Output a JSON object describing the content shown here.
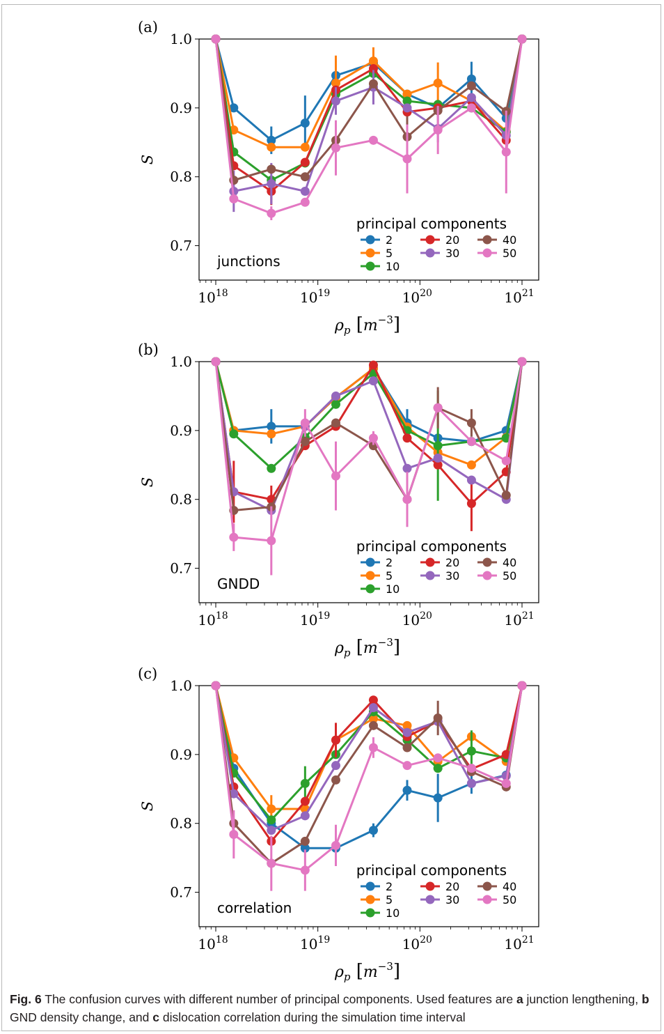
{
  "caption": {
    "label": "Fig. 6",
    "text_1": "The confusion curves with different number of principal components. Used features are",
    "a_letter": "a",
    "text_2": "junction lengthening,",
    "b_letter": "b",
    "text_3": "GND density change, and",
    "c_letter": "c",
    "text_4": "dislocation correlation during the simulation time interval"
  },
  "chart_data": [
    {
      "type": "line",
      "panel": "(a)",
      "annotation": "junctions",
      "xlabel_sym": "ρ",
      "xlabel_sub": "p",
      "xlabel_unit": "m",
      "xlabel_exp": "−3",
      "ylabel": "S",
      "xscale": "log",
      "xlim": [
        1e+18,
        1e+21
      ],
      "ylim": [
        0.65,
        1.0
      ],
      "x_ticks": [
        "18",
        "19",
        "20",
        "21"
      ],
      "x_tick_base": "10",
      "y_ticks": [
        "0.7",
        "0.8",
        "0.9",
        "1.0"
      ],
      "legend_title": "principal components",
      "legend_loc": "lower right",
      "x": [
        1e+18,
        1.5e+18,
        3.5e+18,
        7.5e+18,
        1.5e+19,
        3.5e+19,
        7.5e+19,
        1.5e+20,
        3.2e+20,
        7e+20,
        1e+21
      ],
      "series": [
        {
          "name": "2",
          "color": "#1f77b4",
          "values": [
            1.0,
            0.9,
            0.853,
            0.878,
            0.947,
            0.965,
            0.92,
            0.9,
            0.942,
            0.885,
            1.0
          ],
          "err": [
            0,
            0,
            0.02,
            0.04,
            0,
            0,
            0,
            0,
            0.025,
            0,
            0
          ]
        },
        {
          "name": "5",
          "color": "#ff7f0e",
          "values": [
            1.0,
            0.868,
            0.843,
            0.843,
            0.936,
            0.968,
            0.92,
            0.936,
            0.91,
            0.866,
            1.0
          ],
          "err": [
            0,
            0,
            0,
            0,
            0.04,
            0.02,
            0,
            0.03,
            0,
            0,
            0
          ]
        },
        {
          "name": "10",
          "color": "#2ca02c",
          "values": [
            1.0,
            0.836,
            0.795,
            0.82,
            0.92,
            0.95,
            0.91,
            0.905,
            0.9,
            0.865,
            1.0
          ],
          "err": [
            0,
            0,
            0,
            0,
            0,
            0,
            0,
            0,
            0,
            0,
            0
          ]
        },
        {
          "name": "20",
          "color": "#d62728",
          "values": [
            1.0,
            0.816,
            0.779,
            0.821,
            0.926,
            0.957,
            0.894,
            0.9,
            0.91,
            0.853,
            1.0
          ],
          "err": [
            0,
            0,
            0.02,
            0,
            0,
            0,
            0,
            0,
            0,
            0,
            0
          ]
        },
        {
          "name": "30",
          "color": "#9467bd",
          "values": [
            1.0,
            0.779,
            0.79,
            0.779,
            0.91,
            0.93,
            0.9,
            0.87,
            0.915,
            0.86,
            1.0
          ],
          "err": [
            0,
            0.03,
            0.03,
            0,
            0.02,
            0.025,
            0,
            0.02,
            0,
            0,
            0
          ]
        },
        {
          "name": "40",
          "color": "#8c564b",
          "values": [
            1.0,
            0.795,
            0.811,
            0.8,
            0.853,
            0.935,
            0.858,
            0.896,
            0.932,
            0.895,
            1.0
          ],
          "err": [
            0,
            0,
            0,
            0,
            0,
            0,
            0.03,
            0,
            0,
            0,
            0
          ]
        },
        {
          "name": "50",
          "color": "#e377c2",
          "values": [
            1.0,
            0.768,
            0.747,
            0.763,
            0.842,
            0.853,
            0.826,
            0.868,
            0.9,
            0.836,
            1.0
          ],
          "err": [
            0,
            0,
            0.01,
            0,
            0.04,
            0,
            0.05,
            0.035,
            0,
            0.06,
            0
          ]
        }
      ]
    },
    {
      "type": "line",
      "panel": "(b)",
      "annotation": "GNDD",
      "xlabel_sym": "ρ",
      "xlabel_sub": "p",
      "xlabel_unit": "m",
      "xlabel_exp": "−3",
      "ylabel": "S",
      "xscale": "log",
      "xlim": [
        1e+18,
        1e+21
      ],
      "ylim": [
        0.65,
        1.0
      ],
      "x_ticks": [
        "18",
        "19",
        "20",
        "21"
      ],
      "x_tick_base": "10",
      "y_ticks": [
        "0.7",
        "0.8",
        "0.9",
        "1.0"
      ],
      "legend_title": "principal components",
      "legend_loc": "lower right",
      "x": [
        1e+18,
        1.5e+18,
        3.5e+18,
        7.5e+18,
        1.5e+19,
        3.5e+19,
        7.5e+19,
        1.5e+20,
        3.2e+20,
        7e+20,
        1e+21
      ],
      "series": [
        {
          "name": "2",
          "color": "#1f77b4",
          "values": [
            1.0,
            0.9,
            0.906,
            0.906,
            0.948,
            0.99,
            0.911,
            0.889,
            0.884,
            0.9,
            1.0
          ],
          "err": [
            0,
            0,
            0.025,
            0,
            0,
            0,
            0.02,
            0,
            0,
            0,
            0
          ]
        },
        {
          "name": "5",
          "color": "#ff7f0e",
          "values": [
            1.0,
            0.9,
            0.895,
            0.906,
            0.948,
            0.99,
            0.905,
            0.868,
            0.85,
            0.89,
            1.0
          ],
          "err": [
            0,
            0,
            0,
            0,
            0,
            0,
            0,
            0,
            0,
            0,
            0
          ]
        },
        {
          "name": "10",
          "color": "#2ca02c",
          "values": [
            1.0,
            0.895,
            0.845,
            0.89,
            0.938,
            0.983,
            0.9,
            0.878,
            0.884,
            0.889,
            1.0
          ],
          "err": [
            0,
            0,
            0,
            0,
            0,
            0,
            0,
            0.08,
            0,
            0,
            0
          ]
        },
        {
          "name": "20",
          "color": "#d62728",
          "values": [
            1.0,
            0.811,
            0.8,
            0.878,
            0.906,
            0.995,
            0.889,
            0.85,
            0.794,
            0.84,
            1.0
          ],
          "err": [
            0,
            0.045,
            0.02,
            0,
            0,
            0,
            0,
            0,
            0.04,
            0,
            0
          ]
        },
        {
          "name": "30",
          "color": "#9467bd",
          "values": [
            1.0,
            0.811,
            0.784,
            0.906,
            0.95,
            0.972,
            0.845,
            0.86,
            0.828,
            0.8,
            1.0
          ],
          "err": [
            0,
            0,
            0,
            0,
            0,
            0,
            0,
            0,
            0,
            0,
            0
          ]
        },
        {
          "name": "40",
          "color": "#8c564b",
          "values": [
            1.0,
            0.784,
            0.789,
            0.884,
            0.911,
            0.878,
            0.8,
            0.933,
            0.911,
            0.806,
            1.0
          ],
          "err": [
            0,
            0,
            0,
            0,
            0,
            0,
            0,
            0.03,
            0.02,
            0,
            0
          ]
        },
        {
          "name": "50",
          "color": "#e377c2",
          "values": [
            1.0,
            0.745,
            0.74,
            0.911,
            0.834,
            0.889,
            0.8,
            0.933,
            0.884,
            0.856,
            1.0
          ],
          "err": [
            0,
            0.02,
            0.05,
            0.02,
            0.05,
            0.01,
            0.04,
            0,
            0,
            0,
            0
          ]
        }
      ]
    },
    {
      "type": "line",
      "panel": "(c)",
      "annotation": "correlation",
      "xlabel_sym": "ρ",
      "xlabel_sub": "p",
      "xlabel_unit": "m",
      "xlabel_exp": "−3",
      "ylabel": "S",
      "xscale": "log",
      "xlim": [
        1e+18,
        1e+21
      ],
      "ylim": [
        0.65,
        1.0
      ],
      "x_ticks": [
        "18",
        "19",
        "20",
        "21"
      ],
      "x_tick_base": "10",
      "y_ticks": [
        "0.7",
        "0.8",
        "0.9",
        "1.0"
      ],
      "legend_title": "principal components",
      "legend_loc": "lower right",
      "x": [
        1e+18,
        1.5e+18,
        3.5e+18,
        7.5e+18,
        1.5e+19,
        3.5e+19,
        7.5e+19,
        1.5e+20,
        3.2e+20,
        7e+20,
        1e+21
      ],
      "series": [
        {
          "name": "2",
          "color": "#1f77b4",
          "values": [
            1.0,
            0.88,
            0.8,
            0.764,
            0.764,
            0.79,
            0.848,
            0.837,
            0.858,
            0.87,
            1.0
          ],
          "err": [
            0,
            0,
            0,
            0,
            0,
            0.01,
            0.015,
            0.035,
            0.015,
            0,
            0
          ]
        },
        {
          "name": "5",
          "color": "#ff7f0e",
          "values": [
            1.0,
            0.895,
            0.821,
            0.821,
            0.921,
            0.952,
            0.942,
            0.89,
            0.926,
            0.89,
            1.0
          ],
          "err": [
            0,
            0,
            0.02,
            0,
            0,
            0,
            0,
            0,
            0,
            0,
            0
          ]
        },
        {
          "name": "10",
          "color": "#2ca02c",
          "values": [
            1.0,
            0.873,
            0.805,
            0.858,
            0.9,
            0.962,
            0.921,
            0.88,
            0.905,
            0.895,
            1.0
          ],
          "err": [
            0,
            0,
            0,
            0.025,
            0,
            0,
            0,
            0,
            0.03,
            0,
            0
          ]
        },
        {
          "name": "20",
          "color": "#d62728",
          "values": [
            1.0,
            0.853,
            0.774,
            0.832,
            0.921,
            0.979,
            0.926,
            0.948,
            0.879,
            0.9,
            1.0
          ],
          "err": [
            0,
            0,
            0,
            0,
            0.025,
            0,
            0,
            0,
            0,
            0,
            0
          ]
        },
        {
          "name": "30",
          "color": "#9467bd",
          "values": [
            1.0,
            0.843,
            0.79,
            0.811,
            0.884,
            0.968,
            0.932,
            0.948,
            0.858,
            0.869,
            1.0
          ],
          "err": [
            0,
            0,
            0,
            0,
            0,
            0,
            0,
            0,
            0,
            0,
            0
          ]
        },
        {
          "name": "40",
          "color": "#8c564b",
          "values": [
            1.0,
            0.8,
            0.742,
            0.774,
            0.863,
            0.942,
            0.91,
            0.953,
            0.875,
            0.853,
            1.0
          ],
          "err": [
            0,
            0,
            0,
            0,
            0,
            0,
            0,
            0.025,
            0,
            0,
            0
          ]
        },
        {
          "name": "50",
          "color": "#e377c2",
          "values": [
            1.0,
            0.784,
            0.742,
            0.732,
            0.768,
            0.91,
            0.884,
            0.895,
            0.88,
            0.858,
            1.0
          ],
          "err": [
            0,
            0.035,
            0.04,
            0.03,
            0.03,
            0.015,
            0,
            0,
            0,
            0,
            0
          ]
        }
      ]
    }
  ]
}
